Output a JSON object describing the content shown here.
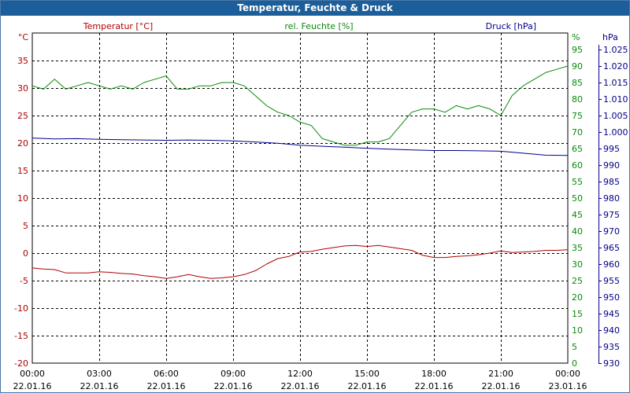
{
  "window": {
    "title": "Temperatur, Feuchte & Druck"
  },
  "colors": {
    "temperature": "#b00000",
    "humidity": "#0a8a0a",
    "pressure": "#00008b",
    "titlebar": "#1c5e99"
  },
  "chart_data": {
    "type": "line",
    "title": "Temperatur, Feuchte & Druck",
    "grid": true,
    "x": {
      "time_labels": [
        "00:00",
        "03:00",
        "06:00",
        "09:00",
        "12:00",
        "15:00",
        "18:00",
        "21:00",
        "00:00"
      ],
      "date_labels": [
        "22.01.16",
        "22.01.16",
        "22.01.16",
        "22.01.16",
        "22.01.16",
        "22.01.16",
        "22.01.16",
        "22.01.16",
        "23.01.16"
      ],
      "range": [
        "22.01.16 00:00",
        "23.01.16 00:00"
      ]
    },
    "axes": {
      "temperature": {
        "label": "Temperatur [°C]",
        "unit": "°C",
        "ylim": [
          -20,
          40
        ],
        "ticks": [
          "-20",
          "-15",
          "-10",
          "-5",
          "0",
          "5",
          "10",
          "15",
          "20",
          "25",
          "30",
          "35"
        ]
      },
      "humidity": {
        "label": "rel. Feuchte [%]",
        "unit": "%",
        "ylim": [
          0,
          100
        ],
        "ticks": [
          "0",
          "5",
          "10",
          "15",
          "20",
          "25",
          "30",
          "35",
          "40",
          "45",
          "50",
          "55",
          "60",
          "65",
          "70",
          "75",
          "80",
          "85",
          "90",
          "95"
        ]
      },
      "pressure": {
        "label": "Druck [hPa]",
        "unit": "hPa",
        "ylim": [
          930,
          1030
        ],
        "ticks": [
          "930",
          "935",
          "940",
          "945",
          "950",
          "955",
          "960",
          "965",
          "970",
          "975",
          "980",
          "985",
          "990",
          "995",
          "1.000",
          "1.005",
          "1.010",
          "1.015",
          "1.020",
          "1.025"
        ]
      }
    },
    "series": [
      {
        "name": "Temperatur [°C]",
        "axis": "temperature",
        "color": "#b00000",
        "x": [
          0,
          0.5,
          1,
          1.5,
          2,
          2.5,
          3,
          3.5,
          4,
          4.5,
          5,
          5.5,
          6,
          6.5,
          7,
          7.5,
          8,
          8.5,
          9,
          9.5,
          10,
          10.5,
          11,
          11.5,
          12,
          12.5,
          13,
          13.5,
          14,
          14.5,
          15,
          15.5,
          16,
          16.5,
          17,
          17.5,
          18,
          18.5,
          19,
          19.5,
          20,
          20.5,
          21,
          21.5,
          22,
          22.5,
          23,
          23.5,
          24
        ],
        "values": [
          -2.7,
          -2.9,
          -3.0,
          -3.6,
          -3.6,
          -3.6,
          -3.4,
          -3.5,
          -3.7,
          -3.8,
          -4.1,
          -4.3,
          -4.6,
          -4.3,
          -3.9,
          -4.3,
          -4.6,
          -4.5,
          -4.3,
          -3.9,
          -3.2,
          -2.0,
          -1.0,
          -0.6,
          0.2,
          0.3,
          0.7,
          1.0,
          1.3,
          1.4,
          1.2,
          1.4,
          1.1,
          0.8,
          0.5,
          -0.4,
          -0.8,
          -0.8,
          -0.6,
          -0.5,
          -0.3,
          0.0,
          0.4,
          0.1,
          0.2,
          0.3,
          0.5,
          0.5,
          0.6
        ]
      },
      {
        "name": "rel. Feuchte [%]",
        "axis": "humidity",
        "color": "#0a8a0a",
        "x": [
          0,
          0.5,
          1,
          1.5,
          2,
          2.5,
          3,
          3.5,
          4,
          4.5,
          5,
          5.5,
          6,
          6.5,
          7,
          7.5,
          8,
          8.5,
          9,
          9.5,
          10,
          10.5,
          11,
          11.5,
          12,
          12.5,
          13,
          13.5,
          14,
          14.5,
          15,
          15.5,
          16,
          16.5,
          17,
          17.5,
          18,
          18.5,
          19,
          19.5,
          20,
          20.5,
          21,
          21.5,
          22,
          22.5,
          23,
          23.5,
          24
        ],
        "values": [
          84,
          83,
          86,
          83,
          84,
          85,
          84,
          83,
          84,
          83,
          85,
          86,
          87,
          83,
          83,
          84,
          84,
          85,
          85,
          84,
          81,
          78,
          76,
          75,
          73,
          72,
          68,
          67,
          66,
          66,
          67,
          67,
          68,
          72,
          76,
          77,
          77,
          76,
          78,
          77,
          78,
          77,
          75,
          81,
          84,
          86,
          88,
          89,
          90
        ]
      },
      {
        "name": "Druck [hPa]",
        "axis": "pressure",
        "color": "#00008b",
        "x": [
          0,
          1,
          2,
          3,
          4,
          5,
          6,
          7,
          8,
          9,
          10,
          11,
          12,
          13,
          14,
          15,
          16,
          17,
          18,
          19,
          20,
          21,
          22,
          23,
          24
        ],
        "values": [
          998.2,
          997.9,
          998.0,
          997.8,
          997.7,
          997.6,
          997.5,
          997.6,
          997.5,
          997.3,
          997.0,
          996.6,
          996.0,
          995.7,
          995.4,
          995.1,
          994.8,
          994.6,
          994.4,
          994.4,
          994.3,
          994.2,
          993.6,
          993.0,
          992.9
        ]
      }
    ]
  }
}
